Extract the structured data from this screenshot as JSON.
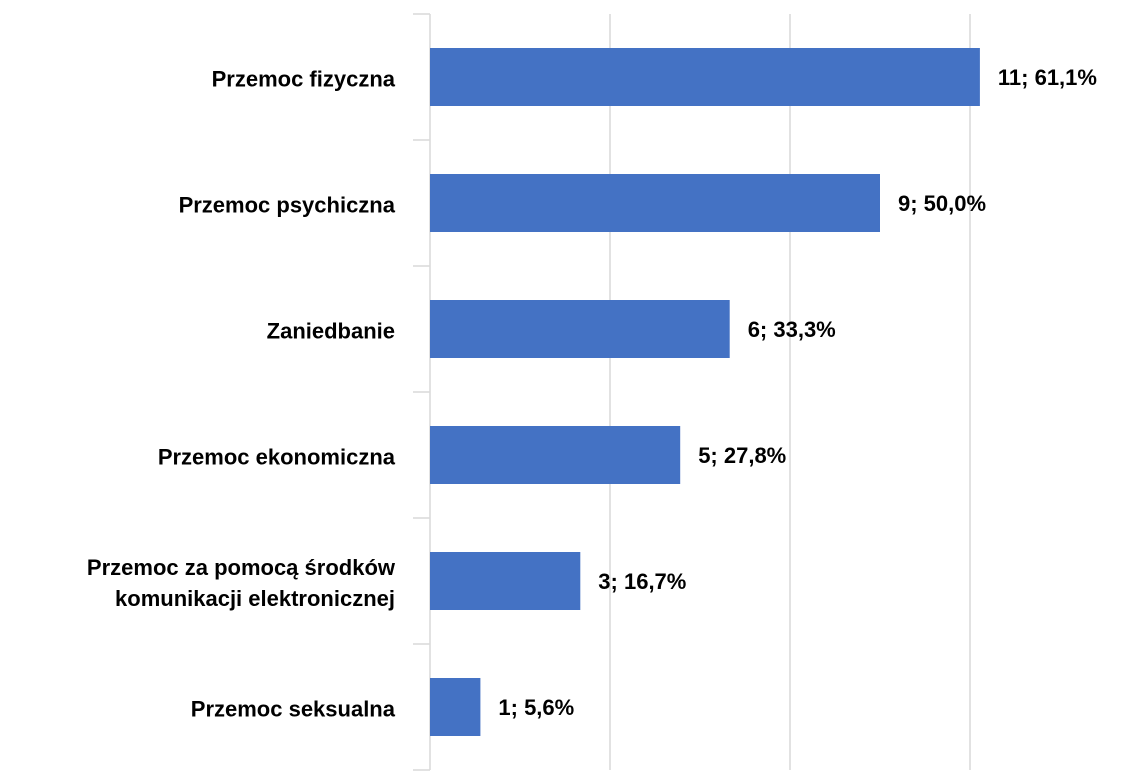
{
  "chart_data": {
    "type": "bar",
    "orientation": "horizontal",
    "categories": [
      "Przemoc fizyczna",
      "Przemoc psychiczna",
      "Zaniedbanie",
      "Przemoc ekonomiczna",
      "Przemoc za pomocą środków\nkomunikacji elektronicznej",
      "Przemoc seksualna"
    ],
    "values": [
      61.1,
      50.0,
      33.3,
      27.8,
      16.7,
      5.6
    ],
    "value_labels": [
      "11; 61,1%",
      "9; 50,0%",
      "6; 33,3%",
      "5; 27,8%",
      "3; 16,7%",
      "1; 5,6%"
    ],
    "color": "#4472c4",
    "xlim": [
      0,
      78
    ],
    "xticks": [
      0,
      20,
      40,
      60
    ],
    "grid": true
  }
}
